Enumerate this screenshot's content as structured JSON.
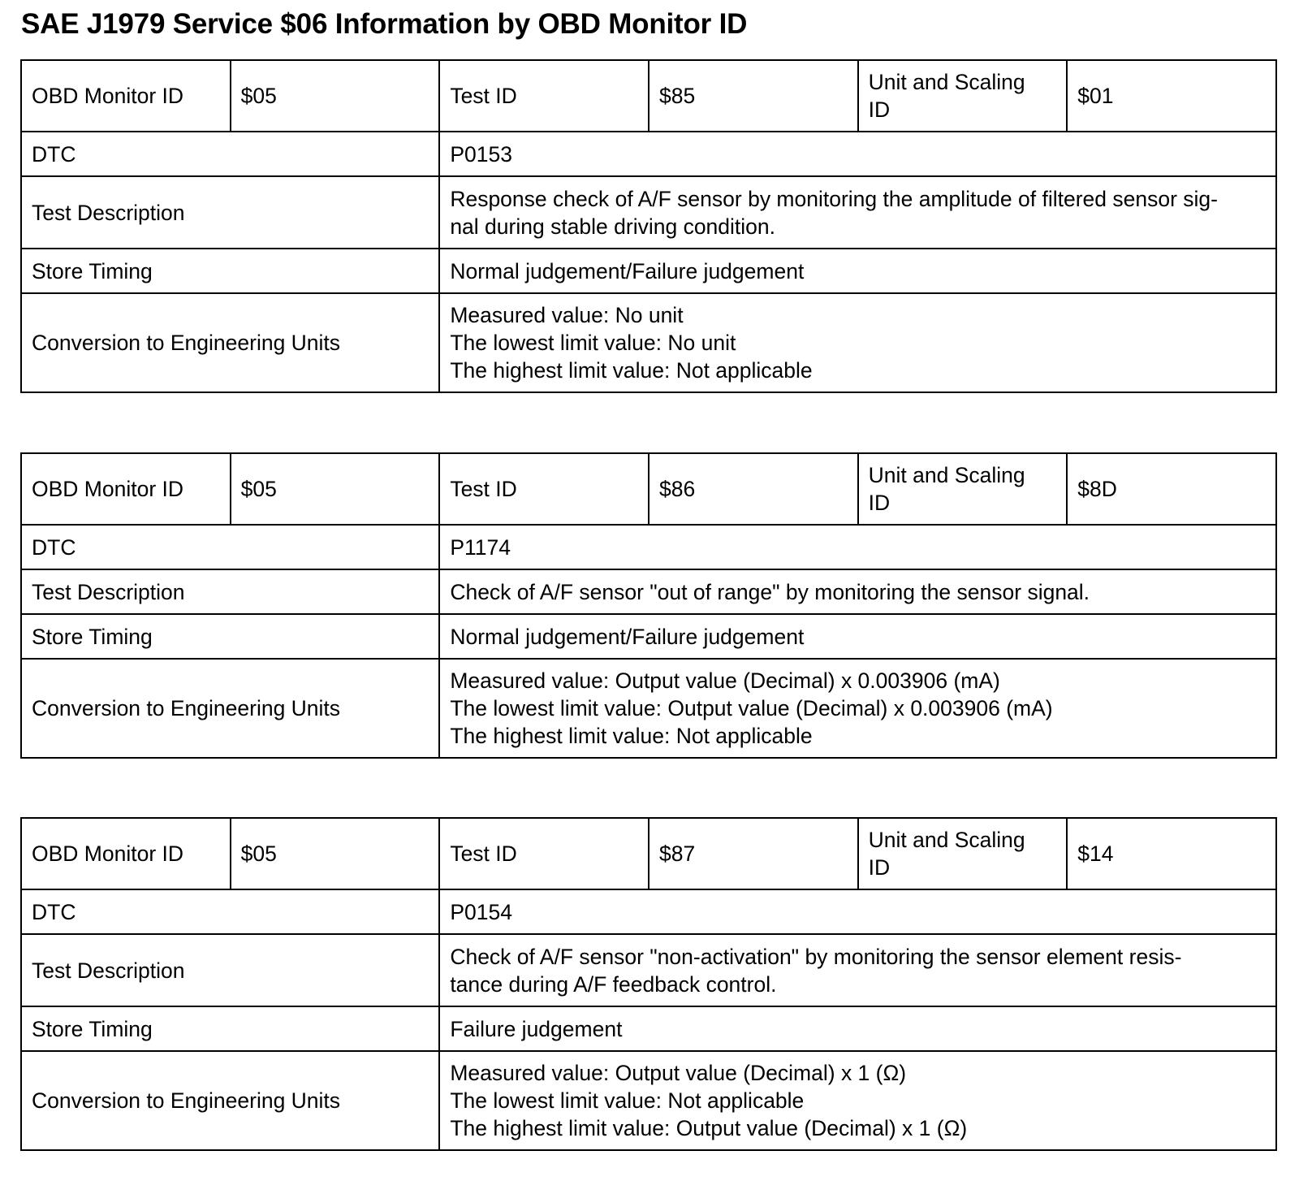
{
  "title": "SAE J1979 Service $06 Information by OBD Monitor ID",
  "tables": [
    {
      "header": [
        [
          "OBD Monitor ID"
        ],
        [
          "$05"
        ],
        [
          "Test ID"
        ],
        [
          "$85"
        ],
        [
          "Unit and Scaling",
          "ID"
        ],
        [
          "$01"
        ]
      ],
      "rows": [
        {
          "label": "DTC",
          "value": [
            "P0153"
          ]
        },
        {
          "label": "Test Description",
          "value": [
            "Response check of A/F sensor by monitoring the amplitude of filtered sensor sig-",
            "nal during stable driving condition."
          ]
        },
        {
          "label": "Store Timing",
          "value": [
            "Normal judgement/Failure judgement"
          ]
        },
        {
          "label": "Conversion to Engineering Units",
          "value": [
            "Measured value: No unit",
            "The lowest limit value: No unit",
            "The highest limit value: Not applicable"
          ]
        }
      ]
    },
    {
      "header": [
        [
          "OBD Monitor ID"
        ],
        [
          "$05"
        ],
        [
          "Test ID"
        ],
        [
          "$86"
        ],
        [
          "Unit and Scaling",
          "ID"
        ],
        [
          "$8D"
        ]
      ],
      "rows": [
        {
          "label": "DTC",
          "value": [
            "P1174"
          ]
        },
        {
          "label": "Test Description",
          "value": [
            "Check of A/F sensor \"out of range\" by monitoring the sensor signal."
          ]
        },
        {
          "label": "Store Timing",
          "value": [
            "Normal judgement/Failure judgement"
          ]
        },
        {
          "label": "Conversion to Engineering Units",
          "value": [
            "Measured value: Output value (Decimal) x 0.003906 (mA)",
            "The lowest limit value: Output value (Decimal) x 0.003906 (mA)",
            "The highest limit value: Not applicable"
          ]
        }
      ]
    },
    {
      "header": [
        [
          "OBD Monitor ID"
        ],
        [
          "$05"
        ],
        [
          "Test ID"
        ],
        [
          "$87"
        ],
        [
          "Unit and Scaling",
          "ID"
        ],
        [
          "$14"
        ]
      ],
      "rows": [
        {
          "label": "DTC",
          "value": [
            "P0154"
          ]
        },
        {
          "label": "Test Description",
          "value": [
            "Check of A/F sensor \"non-activation\" by monitoring the sensor element resis-",
            "tance during A/F feedback control."
          ]
        },
        {
          "label": "Store Timing",
          "value": [
            "Failure judgement"
          ]
        },
        {
          "label": "Conversion to Engineering Units",
          "value": [
            "Measured value: Output value (Decimal) x 1 (Ω)",
            "The lowest limit value: Not applicable",
            "The highest limit value: Output value (Decimal) x 1 (Ω)"
          ]
        }
      ]
    }
  ]
}
